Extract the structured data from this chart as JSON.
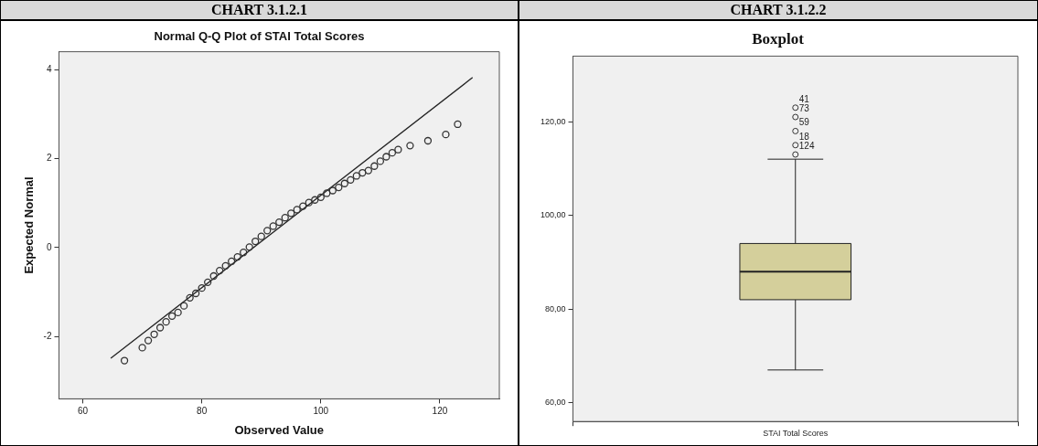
{
  "chart_data": [
    {
      "type": "scatter",
      "title": "CHART 3.1.2.1",
      "subtitle": "Normal Q-Q Plot of STAI Total Scores",
      "xlabel": "Observed Value",
      "ylabel": "Expected Normal",
      "x": [
        67,
        70,
        71,
        72,
        73,
        74,
        75,
        76,
        77,
        78,
        79,
        80,
        81,
        82,
        83,
        84,
        85,
        86,
        87,
        88,
        89,
        90,
        91,
        92,
        93,
        94,
        95,
        96,
        97,
        98,
        99,
        100,
        101,
        102,
        103,
        104,
        105,
        106,
        107,
        108,
        109,
        110,
        111,
        112,
        113,
        115,
        118,
        121,
        123
      ],
      "series": [
        {
          "color": "#333333",
          "marker": "circle",
          "values": [
            -2.54,
            -2.25,
            -2.09,
            -1.95,
            -1.8,
            -1.67,
            -1.54,
            -1.46,
            -1.31,
            -1.13,
            -1.03,
            -0.91,
            -0.78,
            -0.64,
            -0.52,
            -0.41,
            -0.31,
            -0.21,
            -0.11,
            0.01,
            0.14,
            0.25,
            0.38,
            0.48,
            0.57,
            0.67,
            0.77,
            0.85,
            0.93,
            1.01,
            1.07,
            1.13,
            1.22,
            1.28,
            1.35,
            1.44,
            1.52,
            1.61,
            1.68,
            1.73,
            1.83,
            1.94,
            2.04,
            2.13,
            2.2,
            2.29,
            2.4,
            2.54,
            2.77
          ]
        },
        {
          "type": "line",
          "color": "#222222",
          "x": [
            64.7,
            125.5
          ],
          "values": [
            -2.49,
            3.82
          ]
        }
      ],
      "xlim": [
        56,
        130
      ],
      "ylim": [
        -3.4,
        4.4
      ],
      "xticks": [
        60,
        80,
        100,
        120
      ],
      "yticks": [
        -2,
        0,
        2,
        4
      ]
    },
    {
      "type": "box",
      "title": "CHART 3.1.2.2",
      "subtitle": "Boxplot",
      "categories": [
        "STAI Total Scores"
      ],
      "color": "#d4cf9b",
      "boxes": [
        {
          "low": 67,
          "q1": 82,
          "median": 88,
          "q3": 94,
          "high": 112,
          "outliers": [
            113,
            115,
            118,
            121,
            123
          ]
        }
      ],
      "ylim": [
        56,
        134
      ],
      "yticks": [
        {
          "value": 60,
          "label": "60,00"
        },
        {
          "value": 80,
          "label": "80,00"
        },
        {
          "value": 100,
          "label": "100,00"
        },
        {
          "value": 120,
          "label": "120,00"
        }
      ],
      "annotations": [
        "41",
        "73",
        "59",
        "18",
        "124"
      ]
    }
  ]
}
